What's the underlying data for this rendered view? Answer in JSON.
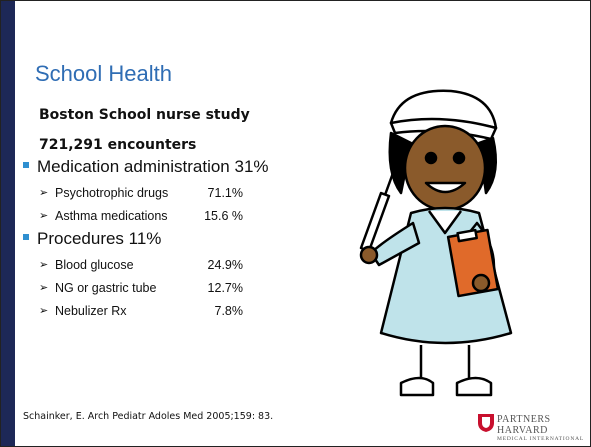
{
  "title": "School Health",
  "subtitle": "Boston School nurse study",
  "encounters": "721,291 encounters",
  "bullets": [
    {
      "text": "Medication administration 31%",
      "items": [
        {
          "label": "Psychotrophic drugs",
          "value": "71.1%"
        },
        {
          "label": "Asthma medications",
          "value": "15.6 %"
        }
      ]
    },
    {
      "text": "Procedures 11%",
      "items": [
        {
          "label": "Blood glucose",
          "value": "24.9%"
        },
        {
          "label": "NG or gastric tube",
          "value": "12.7%"
        },
        {
          "label": "Nebulizer Rx",
          "value": "7.8%"
        }
      ]
    }
  ],
  "citation": "Schainker, E. Arch Pediatr Adoles Med 2005;159: 83.",
  "logo": {
    "line1": "PARTNERS HARVARD",
    "line2": "MEDICAL INTERNATIONAL"
  }
}
